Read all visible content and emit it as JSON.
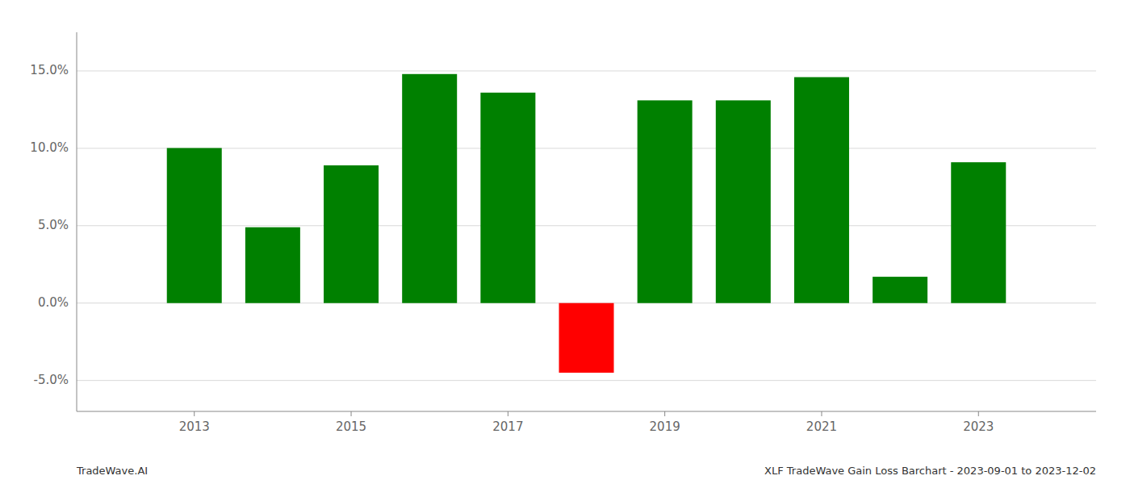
{
  "chart_data": {
    "type": "bar",
    "x": [
      2013,
      2014,
      2015,
      2016,
      2017,
      2018,
      2019,
      2020,
      2021,
      2022,
      2023
    ],
    "values": [
      0.1002,
      0.049,
      0.089,
      0.148,
      0.136,
      -0.045,
      0.131,
      0.131,
      0.146,
      0.017,
      0.091
    ],
    "colors": [
      "#008000",
      "#008000",
      "#008000",
      "#008000",
      "#008000",
      "#ff0000",
      "#008000",
      "#008000",
      "#008000",
      "#008000",
      "#008000"
    ],
    "xlim": [
      2011.5,
      2024.5
    ],
    "xticks": [
      2013,
      2015,
      2017,
      2019,
      2021,
      2023
    ],
    "ylim": [
      -0.07,
      0.175
    ],
    "yticks": [
      {
        "value": -0.05,
        "label": "-5.0%"
      },
      {
        "value": 0.0,
        "label": "0.0%"
      },
      {
        "value": 0.05,
        "label": "5.0%"
      },
      {
        "value": 0.1,
        "label": "10.0%"
      },
      {
        "value": 0.15,
        "label": "15.0%"
      }
    ],
    "grid": true,
    "annotations": [
      "TradeWave.AI",
      "XLF TradeWave Gain Loss Barchart - 2023-09-01 to 2023-12-02"
    ]
  }
}
